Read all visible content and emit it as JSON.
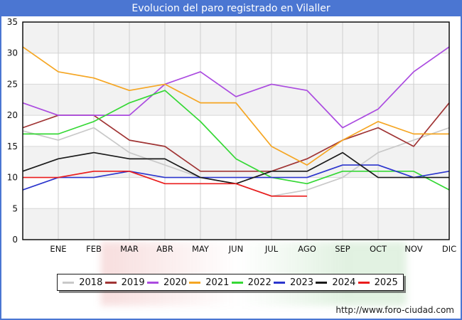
{
  "window": {
    "title": "Evolucion del paro registrado en Vilaller"
  },
  "footer": {
    "url": "http://www.foro-ciudad.com"
  },
  "colors": {
    "frame_blue": "#4b76d2",
    "plot_band_gray": "#f2f2f2",
    "vertical_gridline": "#cfcfcf",
    "horizontal_gridline": "#d6d6d6",
    "plot_border": "#000000",
    "axis_text": "#111111"
  },
  "chart_data": {
    "type": "line",
    "title": "Evolucion del paro registrado en Vilaller",
    "x_labels": [
      "ENE",
      "FEB",
      "MAR",
      "ABR",
      "MAY",
      "JUN",
      "JUL",
      "AGO",
      "SEP",
      "OCT",
      "NOV",
      "DIC"
    ],
    "x_start_at_axis": true,
    "ylim": [
      0,
      35
    ],
    "yticks": [
      0,
      5,
      10,
      15,
      20,
      25,
      30,
      35
    ],
    "grid": true,
    "shaded_bands": [
      [
        0,
        5
      ],
      [
        10,
        15
      ],
      [
        20,
        25
      ],
      [
        30,
        35
      ]
    ],
    "legend_position": "bottom",
    "series": [
      {
        "name": "2018",
        "color": "#c9c9c9",
        "values": [
          17.5,
          16,
          18,
          14,
          12,
          10,
          9,
          7,
          8,
          10,
          14,
          16,
          18
        ]
      },
      {
        "name": "2019",
        "color": "#a03434",
        "values": [
          18,
          20,
          20,
          16,
          15,
          11,
          11,
          11,
          13,
          16,
          18,
          15,
          22
        ]
      },
      {
        "name": "2020",
        "color": "#ab4be0",
        "values": [
          22,
          20,
          20,
          20,
          25,
          27,
          23,
          25,
          24,
          18,
          21,
          27,
          31
        ]
      },
      {
        "name": "2021",
        "color": "#f5a623",
        "values": [
          31,
          27,
          26,
          24,
          25,
          22,
          22,
          15,
          12,
          16,
          19,
          17,
          17
        ]
      },
      {
        "name": "2022",
        "color": "#35d835",
        "values": [
          17,
          17,
          19,
          22,
          24,
          19,
          13,
          10,
          9,
          11,
          11,
          11,
          8
        ]
      },
      {
        "name": "2023",
        "color": "#2b35cd",
        "values": [
          8,
          10,
          10,
          11,
          10,
          10,
          10,
          10,
          10,
          12,
          12,
          10,
          11
        ]
      },
      {
        "name": "2024",
        "color": "#1a1a1a",
        "values": [
          11,
          13,
          14,
          13,
          13,
          10,
          9,
          11,
          11,
          14,
          10,
          10,
          10
        ]
      },
      {
        "name": "2025",
        "color": "#ea1c1c",
        "values": [
          10,
          10,
          11,
          11,
          9,
          9,
          9,
          7,
          7
        ]
      }
    ]
  }
}
